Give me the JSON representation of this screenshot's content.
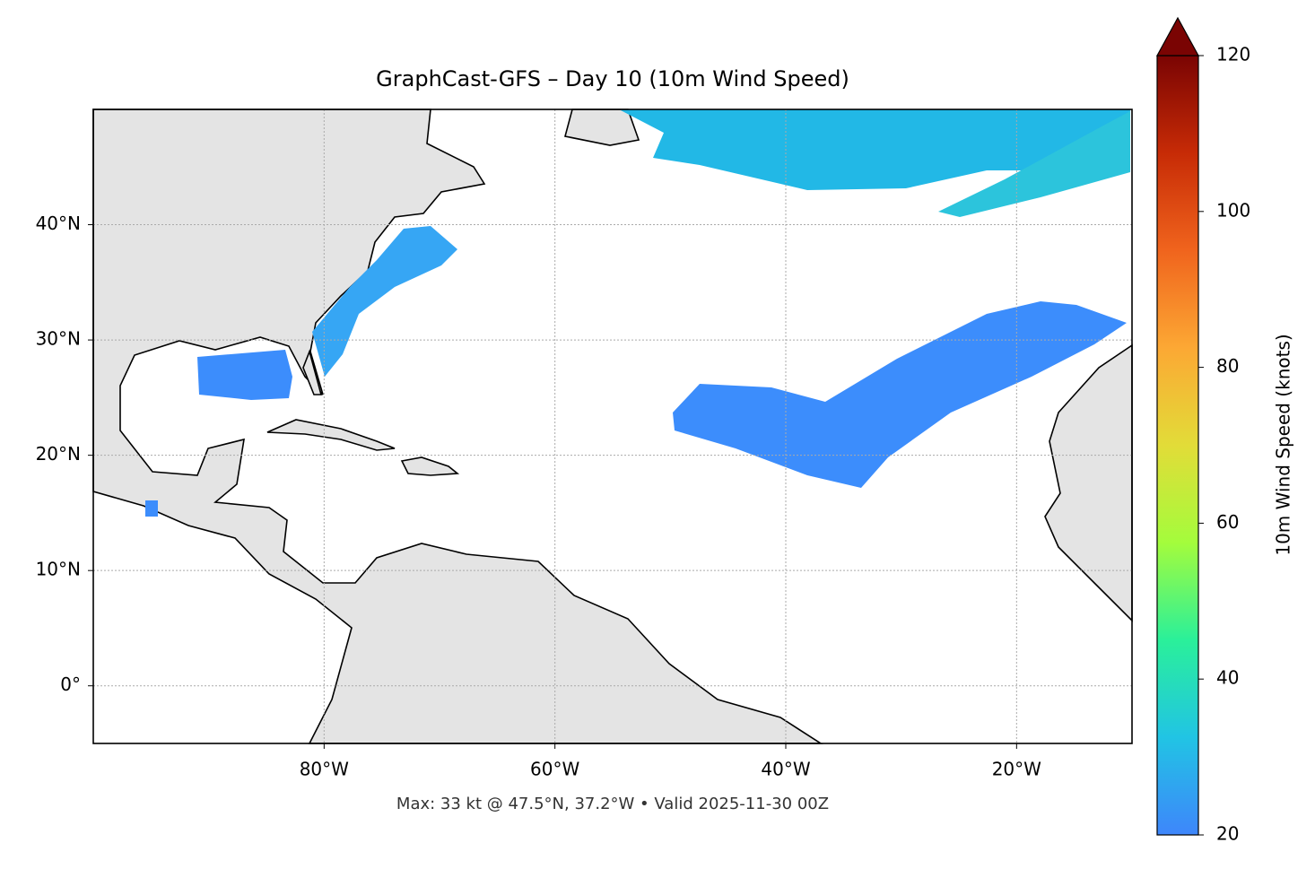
{
  "chart_data": {
    "type": "map",
    "title": "GraphCast-GFS – Day 10 (10m Wind Speed)",
    "annotation": "Max: 33 kt @ 47.5°N, 37.2°W • Valid 2025-11-30 00Z",
    "xlim": [
      -100,
      -10
    ],
    "ylim": [
      -5,
      50
    ],
    "xticks": [
      {
        "value": -80,
        "label": "80°W"
      },
      {
        "value": -60,
        "label": "60°W"
      },
      {
        "value": -40,
        "label": "40°W"
      },
      {
        "value": -20,
        "label": "20°W"
      }
    ],
    "yticks": [
      {
        "value": 0,
        "label": "0°"
      },
      {
        "value": 10,
        "label": "10°N"
      },
      {
        "value": 20,
        "label": "20°N"
      },
      {
        "value": 30,
        "label": "30°N"
      },
      {
        "value": 40,
        "label": "40°N"
      }
    ],
    "grid": true,
    "colorbar": {
      "label": "10m Wind Speed (knots)",
      "lim": [
        20,
        120
      ],
      "ticks": [
        20,
        40,
        60,
        80,
        100,
        120
      ],
      "colors": [
        "#3e86fb",
        "#21c4e4",
        "#2af09a",
        "#a4fc3c",
        "#e2dc38",
        "#fca834",
        "#f0641d",
        "#c72b06",
        "#7a0403"
      ]
    }
  }
}
